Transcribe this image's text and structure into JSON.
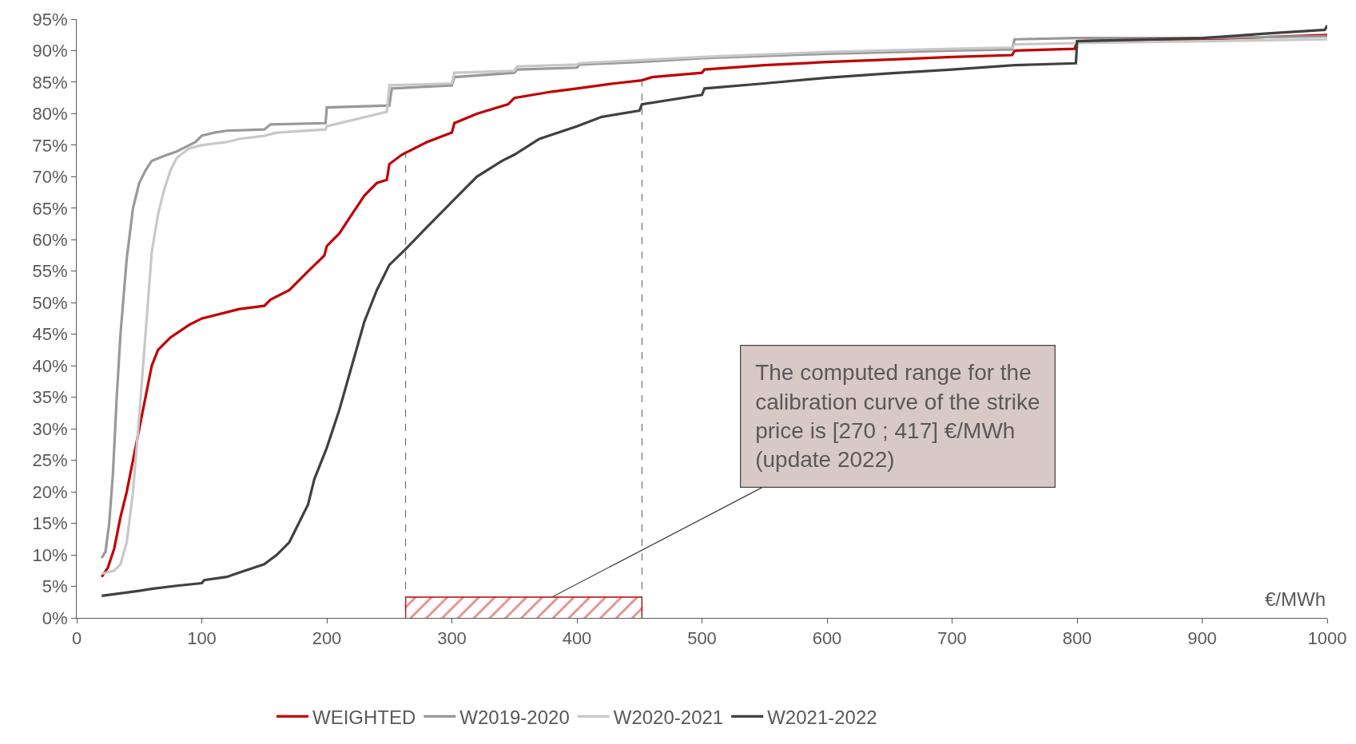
{
  "chart_data": {
    "type": "line",
    "xlabel": "€/MWh",
    "xlim": [
      0,
      1000
    ],
    "xticks": [
      0,
      100,
      200,
      300,
      400,
      500,
      600,
      700,
      800,
      900,
      1000
    ],
    "ylim": [
      0,
      95
    ],
    "yticks": [
      {
        "value": 0,
        "label": "0%"
      },
      {
        "value": 5,
        "label": "5%"
      },
      {
        "value": 10,
        "label": "10%"
      },
      {
        "value": 15,
        "label": "15%"
      },
      {
        "value": 20,
        "label": "20%"
      },
      {
        "value": 25,
        "label": "25%"
      },
      {
        "value": 30,
        "label": "30%"
      },
      {
        "value": 35,
        "label": "35%"
      },
      {
        "value": 40,
        "label": "40%"
      },
      {
        "value": 45,
        "label": "45%"
      },
      {
        "value": 50,
        "label": "50%"
      },
      {
        "value": 55,
        "label": "55%"
      },
      {
        "value": 60,
        "label": "60%"
      },
      {
        "value": 65,
        "label": "65%"
      },
      {
        "value": 70,
        "label": "70%"
      },
      {
        "value": 75,
        "label": "75%"
      },
      {
        "value": 80,
        "label": "80%"
      },
      {
        "value": 85,
        "label": "85%"
      },
      {
        "value": 90,
        "label": "90%"
      },
      {
        "value": 95,
        "label": "95%"
      }
    ],
    "legend": "bottom",
    "marker": "none",
    "line_style": "solid",
    "series": [
      {
        "name": "WEIGHTED",
        "color": "#c00000",
        "x": [
          20,
          25,
          30,
          35,
          40,
          45,
          50,
          55,
          60,
          65,
          75,
          90,
          100,
          120,
          130,
          150,
          155,
          170,
          185,
          198,
          200,
          210,
          220,
          230,
          240,
          248,
          250,
          260,
          280,
          300,
          302,
          320,
          345,
          350,
          380,
          400,
          430,
          452,
          460,
          500,
          502,
          550,
          600,
          650,
          700,
          748,
          750,
          798,
          800,
          900,
          1000
        ],
        "values": [
          6.5,
          8,
          11,
          16,
          20,
          25,
          30,
          35,
          40,
          42.5,
          44.5,
          46.5,
          47.5,
          48.5,
          49,
          49.5,
          50.5,
          52,
          55,
          57.5,
          59,
          61,
          64,
          67,
          69,
          69.5,
          72,
          73.5,
          75.5,
          77,
          78.5,
          80,
          81.5,
          82.5,
          83.5,
          84,
          84.8,
          85.3,
          85.8,
          86.5,
          87,
          87.7,
          88.2,
          88.6,
          89,
          89.3,
          90,
          90.3,
          91.5,
          91.8,
          92.5
        ]
      },
      {
        "name": "W2019-2020",
        "color": "#999999",
        "x": [
          20,
          23,
          26,
          29,
          32,
          35,
          40,
          45,
          50,
          55,
          60,
          70,
          80,
          90,
          95,
          100,
          110,
          120,
          150,
          155,
          199,
          200,
          250,
          252,
          300,
          302,
          350,
          352,
          400,
          402,
          450,
          500,
          600,
          700,
          748,
          750,
          800,
          900,
          1000
        ],
        "values": [
          9.5,
          10.5,
          15,
          23,
          35,
          45,
          57,
          65,
          69,
          71,
          72.5,
          73.3,
          74,
          75,
          75.5,
          76.5,
          77,
          77.3,
          77.5,
          78.3,
          78.5,
          81,
          81.3,
          84,
          84.5,
          85.8,
          86.5,
          87,
          87.3,
          87.8,
          88.2,
          88.8,
          89.5,
          90,
          90.2,
          91.8,
          92,
          92,
          92.3
        ]
      },
      {
        "name": "W2020-2021",
        "color": "#c8c8c8",
        "x": [
          20,
          30,
          35,
          40,
          45,
          50,
          55,
          60,
          65,
          70,
          75,
          80,
          90,
          100,
          120,
          130,
          150,
          160,
          199,
          200,
          248,
          250,
          300,
          302,
          350,
          352,
          400,
          402,
          450,
          500,
          600,
          700,
          748,
          750,
          800,
          900,
          1000
        ],
        "values": [
          7,
          7.5,
          8.5,
          12,
          20,
          32,
          45,
          58,
          64,
          68,
          71,
          73,
          74.5,
          75,
          75.5,
          76,
          76.5,
          77,
          77.5,
          78,
          80.3,
          84.5,
          84.8,
          86.5,
          86.8,
          87.5,
          87.8,
          88,
          88.5,
          89,
          89.8,
          90.3,
          90.5,
          91,
          91.2,
          91.5,
          91.8
        ]
      },
      {
        "type": "area",
        "color": "#c00000",
        "x": [
          263,
          263,
          452,
          452
        ],
        "values": [
          0,
          3.3,
          3.3,
          0
        ]
      },
      {
        "name": "W2021-2022",
        "color": "#404040",
        "x": [
          20,
          50,
          60,
          80,
          100,
          102,
          120,
          130,
          150,
          160,
          170,
          175,
          185,
          190,
          200,
          210,
          220,
          230,
          240,
          250,
          263,
          280,
          300,
          320,
          340,
          350,
          370,
          400,
          420,
          450,
          452,
          500,
          502,
          550,
          600,
          650,
          700,
          750,
          799,
          800,
          900,
          950,
          998,
          1000
        ],
        "values": [
          3.5,
          4.3,
          4.6,
          5.1,
          5.5,
          6,
          6.5,
          7.2,
          8.5,
          10,
          12,
          14,
          18,
          22,
          27,
          33,
          40,
          47,
          52,
          56,
          58.5,
          62,
          66,
          70,
          72.5,
          73.5,
          76,
          78,
          79.5,
          80.5,
          81.5,
          83,
          84,
          84.8,
          85.7,
          86.4,
          87,
          87.7,
          88,
          91.5,
          92,
          92.7,
          93.3,
          94
        ]
      }
    ],
    "ref_lines": [
      {
        "axis": "x",
        "value": 263,
        "color": "#595959",
        "line_style": "dashed"
      },
      {
        "axis": "x",
        "value": 452,
        "color": "#595959",
        "line_style": "dashed"
      }
    ],
    "annotations": [
      {
        "text": "The computed range for the calibration curve of the strike price is [270 ; 417] €/MWh (update 2022)",
        "x": 380,
        "y": 3.3
      }
    ]
  }
}
